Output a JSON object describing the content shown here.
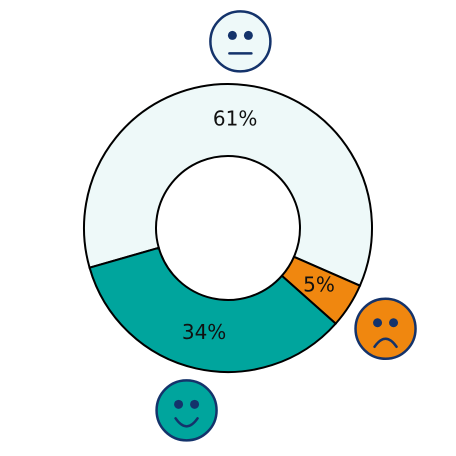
{
  "chart_data": {
    "type": "donut",
    "values": [
      61,
      5,
      34
    ],
    "value_labels": [
      "61%",
      "5%",
      "34%"
    ],
    "colors": [
      "#eef9f9",
      "#f0870f",
      "#00a59d"
    ]
  }
}
